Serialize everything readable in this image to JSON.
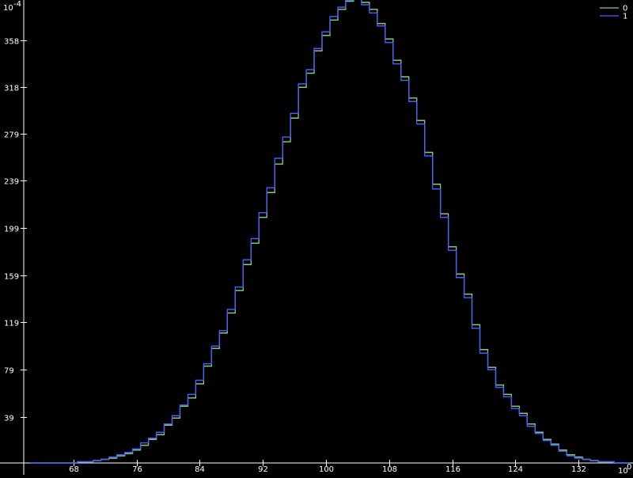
{
  "chart_data": {
    "type": "line",
    "step": true,
    "title": "",
    "xlabel": "",
    "ylabel": "",
    "x_exponent_label": "10",
    "x_exponent_sup": "0",
    "y_exponent_label": "10",
    "y_exponent_sup": "-4",
    "xlim": [
      61.7,
      138.9
    ],
    "ylim": [
      0,
      392
    ],
    "xticks": [
      68,
      76,
      84,
      92,
      100,
      108,
      116,
      124,
      132
    ],
    "yticks": [
      39,
      79,
      119,
      159,
      199,
      239,
      279,
      318,
      358
    ],
    "grid": false,
    "legend_position": "top-right",
    "background": "#000000",
    "axis_color": "#ffffff",
    "x": [
      63,
      64,
      65,
      66,
      67,
      68,
      69,
      70,
      71,
      72,
      73,
      74,
      75,
      76,
      77,
      78,
      79,
      80,
      81,
      82,
      83,
      84,
      85,
      86,
      87,
      88,
      89,
      90,
      91,
      92,
      93,
      94,
      95,
      96,
      97,
      98,
      99,
      100,
      101,
      102,
      103,
      104,
      105,
      106,
      107,
      108,
      109,
      110,
      111,
      112,
      113,
      114,
      115,
      116,
      117,
      118,
      119,
      120,
      121,
      122,
      123,
      124,
      125,
      126,
      127,
      128,
      129,
      130,
      131,
      132,
      133,
      134,
      135,
      136,
      137,
      138
    ],
    "series": [
      {
        "name": "0",
        "color": "#7ed37e",
        "values": [
          0,
          0,
          0,
          0,
          0,
          0,
          1,
          1,
          2,
          3,
          4,
          6,
          8,
          11,
          15,
          20,
          24,
          32,
          38,
          48,
          55,
          67,
          82,
          97,
          110,
          127,
          146,
          168,
          186,
          208,
          229,
          253,
          272,
          292,
          318,
          330,
          349,
          362,
          375,
          384,
          391,
          396,
          390,
          384,
          372,
          359,
          341,
          327,
          309,
          290,
          263,
          236,
          211,
          183,
          160,
          143,
          117,
          96,
          81,
          66,
          58,
          48,
          42,
          33,
          26,
          20,
          16,
          11,
          7,
          5,
          3,
          2,
          1,
          1,
          0,
          0
        ]
      },
      {
        "name": "1",
        "color": "#4f5bff",
        "values": [
          0,
          0,
          0,
          0,
          0,
          0,
          1,
          1,
          2,
          3,
          5,
          7,
          9,
          12,
          17,
          21,
          26,
          33,
          40,
          49,
          58,
          70,
          84,
          99,
          112,
          130,
          149,
          172,
          190,
          212,
          233,
          258,
          276,
          296,
          321,
          333,
          351,
          365,
          378,
          386,
          392,
          395,
          388,
          381,
          370,
          356,
          338,
          324,
          306,
          287,
          260,
          232,
          208,
          180,
          157,
          140,
          114,
          93,
          79,
          64,
          56,
          46,
          40,
          31,
          25,
          19,
          15,
          10,
          6,
          4,
          3,
          2,
          1,
          1,
          0,
          0
        ]
      }
    ]
  }
}
